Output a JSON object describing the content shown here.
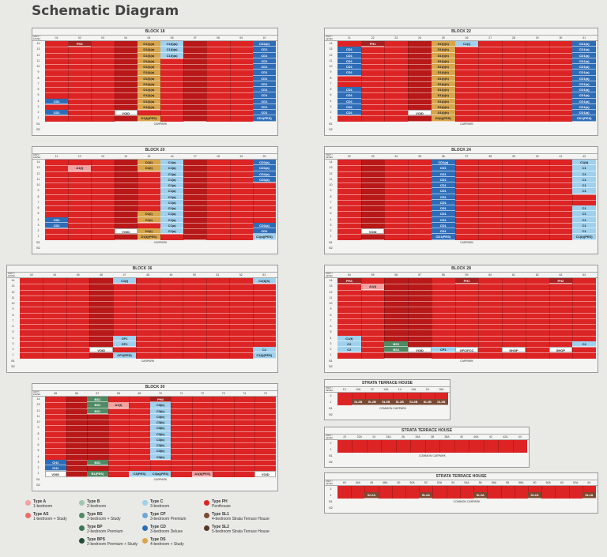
{
  "title": "Schematic Diagram",
  "labels": {
    "unit_level": "UNIT / LEVEL",
    "carpark": "CARPARK",
    "common_carpark": "COMMON CARPARK",
    "void": "VOID"
  },
  "colors": {
    "red": "#dd2424",
    "dark_red": "#b81818",
    "pink": "#f2a0a0",
    "light_blue": "#9fd0ee",
    "blue": "#2d6db8",
    "gold": "#d9a54a",
    "green": "#4e8a63",
    "brown": "#7b4a33",
    "maroon": "#a52020"
  },
  "blocks": [
    {
      "name": "BLOCK 18",
      "cols": [
        "01",
        "02",
        "03",
        "04",
        "05",
        "06",
        "07",
        "08",
        "09",
        "10"
      ],
      "labels": [
        {
          "text": "PH2",
          "color": "maroon"
        },
        {
          "text": "D1(t)(a)",
          "color": "gold"
        },
        {
          "text": "C1(t)(a)",
          "color": "light_blue"
        },
        {
          "text": "CD1(b)",
          "color": "blue"
        },
        {
          "text": "CD1",
          "color": "blue"
        },
        {
          "text": "VOID",
          "color": "white"
        },
        {
          "text": "D1(t)(PES)",
          "color": "gold"
        },
        {
          "text": "CD1(PES)",
          "color": "blue"
        }
      ]
    },
    {
      "name": "BLOCK 20",
      "cols": [
        "11",
        "12",
        "13",
        "14",
        "15",
        "16",
        "17",
        "18",
        "19",
        "20"
      ],
      "labels": [
        {
          "text": "A1(t)",
          "color": "pink"
        },
        {
          "text": "D1(t)",
          "color": "gold"
        },
        {
          "text": "C1(a)",
          "color": "light_blue"
        },
        {
          "text": "CD1(a)",
          "color": "blue"
        },
        {
          "text": "CD1",
          "color": "blue"
        },
        {
          "text": "VOID",
          "color": "white"
        },
        {
          "text": "D1(t)(PES)",
          "color": "gold"
        },
        {
          "text": "C1(a)(PES)",
          "color": "light_blue"
        }
      ]
    },
    {
      "name": "BLOCK 36",
      "cols": [
        "43",
        "44",
        "45",
        "46",
        "47",
        "48",
        "49",
        "50",
        "51",
        "52",
        "53"
      ],
      "labels": [
        {
          "text": "C1(t)",
          "color": "light_blue"
        },
        {
          "text": "C2(t)(h)",
          "color": "light_blue"
        },
        {
          "text": "CP1",
          "color": "light_blue"
        },
        {
          "text": "VOID",
          "color": "white"
        },
        {
          "text": "CP1(PES)",
          "color": "light_blue"
        },
        {
          "text": "C1(t)(PES)",
          "color": "light_blue"
        },
        {
          "text": "C2",
          "color": "light_blue"
        }
      ]
    },
    {
      "name": "BLOCK 30",
      "cols": [
        "65",
        "66",
        "67",
        "68",
        "69",
        "70",
        "71",
        "72",
        "73",
        "74",
        "75"
      ],
      "labels": [
        {
          "text": "BS1",
          "color": "green"
        },
        {
          "text": "A1(t)",
          "color": "pink"
        },
        {
          "text": "PH3",
          "color": "maroon"
        },
        {
          "text": "C3(b)",
          "color": "light_blue"
        },
        {
          "text": "CH1",
          "color": "blue"
        },
        {
          "text": "VOID",
          "color": "white"
        },
        {
          "text": "B1(PES)",
          "color": "green"
        },
        {
          "text": "C3(PES)",
          "color": "light_blue"
        },
        {
          "text": "C3(a)(PES)",
          "color": "light_blue"
        },
        {
          "text": "A1(t)(PES)",
          "color": "pink"
        }
      ]
    },
    {
      "name": "BLOCK 22",
      "cols": [
        "21",
        "22",
        "23",
        "24",
        "25",
        "26",
        "27",
        "28",
        "29",
        "30",
        "31"
      ],
      "labels": [
        {
          "text": "PH1",
          "color": "maroon"
        },
        {
          "text": "D1(t)(h)",
          "color": "gold"
        },
        {
          "text": "C1(t)",
          "color": "light_blue"
        },
        {
          "text": "CD1",
          "color": "blue"
        },
        {
          "text": "CD1(a)",
          "color": "blue"
        },
        {
          "text": "VOID",
          "color": "white"
        },
        {
          "text": "D1(t)(PES)",
          "color": "gold"
        },
        {
          "text": "CD1(PES)",
          "color": "blue"
        }
      ]
    },
    {
      "name": "BLOCK 24",
      "cols": [
        "32",
        "33",
        "34",
        "35",
        "36",
        "37",
        "38",
        "39",
        "40",
        "41",
        "42"
      ],
      "labels": [
        {
          "text": "CD1(a)",
          "color": "blue"
        },
        {
          "text": "CD1",
          "color": "blue"
        },
        {
          "text": "C1(b)",
          "color": "light_blue"
        },
        {
          "text": "C1",
          "color": "light_blue"
        },
        {
          "text": "VOID",
          "color": "white"
        },
        {
          "text": "CD1(PES)",
          "color": "blue"
        },
        {
          "text": "C1(b)(PES)",
          "color": "light_blue"
        }
      ]
    },
    {
      "name": "BLOCK 28",
      "cols": [
        "54",
        "55",
        "56",
        "57",
        "58",
        "59",
        "60",
        "61",
        "62",
        "63",
        "64"
      ],
      "labels": [
        {
          "text": "PH3",
          "color": "maroon"
        },
        {
          "text": "A1(t)",
          "color": "pink"
        },
        {
          "text": "PH1",
          "color": "maroon"
        },
        {
          "text": "PH2",
          "color": "maroon"
        },
        {
          "text": "C1(t)",
          "color": "light_blue"
        },
        {
          "text": "C2",
          "color": "light_blue"
        },
        {
          "text": "BS1",
          "color": "green"
        },
        {
          "text": "VOID",
          "color": "white"
        },
        {
          "text": "CP1",
          "color": "light_blue"
        },
        {
          "text": "GFC/FCC",
          "color": "white"
        },
        {
          "text": "SHOP",
          "color": "white"
        }
      ]
    }
  ],
  "strata": [
    {
      "name": "STRATA TERRACE HOUSE",
      "cols": [
        "10",
        "10A",
        "12",
        "12A",
        "14",
        "14A",
        "16",
        "16A"
      ],
      "label": "SL2B"
    },
    {
      "name": "STRATA TERRACE HOUSE",
      "cols": [
        "22",
        "22A",
        "24",
        "24A",
        "26",
        "26A",
        "38",
        "38A",
        "40",
        "40A",
        "42",
        "42A",
        "44"
      ],
      "label": ""
    },
    {
      "name": "STRATA TERRACE HOUSE",
      "cols": [
        "46",
        "46A",
        "48",
        "48A",
        "50",
        "50A",
        "52",
        "52A",
        "54",
        "54A",
        "56",
        "56A",
        "58",
        "58A",
        "60",
        "60A",
        "62",
        "62A",
        "64"
      ],
      "label": "SL2A"
    }
  ],
  "legend": [
    {
      "name": "Type A",
      "desc": "1-bedroom",
      "color": "pink"
    },
    {
      "name": "Type AS",
      "desc": "1-bedroom + Study",
      "color": "light_red"
    },
    {
      "name": "Type B",
      "desc": "2-bedroom",
      "color": "light_green"
    },
    {
      "name": "Type BS",
      "desc": "2-bedroom + Study",
      "color": "green"
    },
    {
      "name": "Type BP",
      "desc": "2-bedroom Premium",
      "color": "dark_green"
    },
    {
      "name": "Type BPS",
      "desc": "2-bedroom Premium + Study",
      "color": "darker_green"
    },
    {
      "name": "Type C",
      "desc": "3-bedroom",
      "color": "light_blue"
    },
    {
      "name": "Type CP",
      "desc": "3-bedroom Premium",
      "color": "mid_blue"
    },
    {
      "name": "Type CD",
      "desc": "3-bedroom Deluxe",
      "color": "blue"
    },
    {
      "name": "Type DS",
      "desc": "4-bedroom + Study",
      "color": "gold"
    },
    {
      "name": "Type PH",
      "desc": "Penthouse",
      "color": "red"
    },
    {
      "name": "Type SL1",
      "desc": "4-bedroom Strata Terrace House",
      "color": "brown"
    },
    {
      "name": "Type SL2",
      "desc": "5-bedroom Strata Terrace House",
      "color": "dark_brown"
    }
  ]
}
